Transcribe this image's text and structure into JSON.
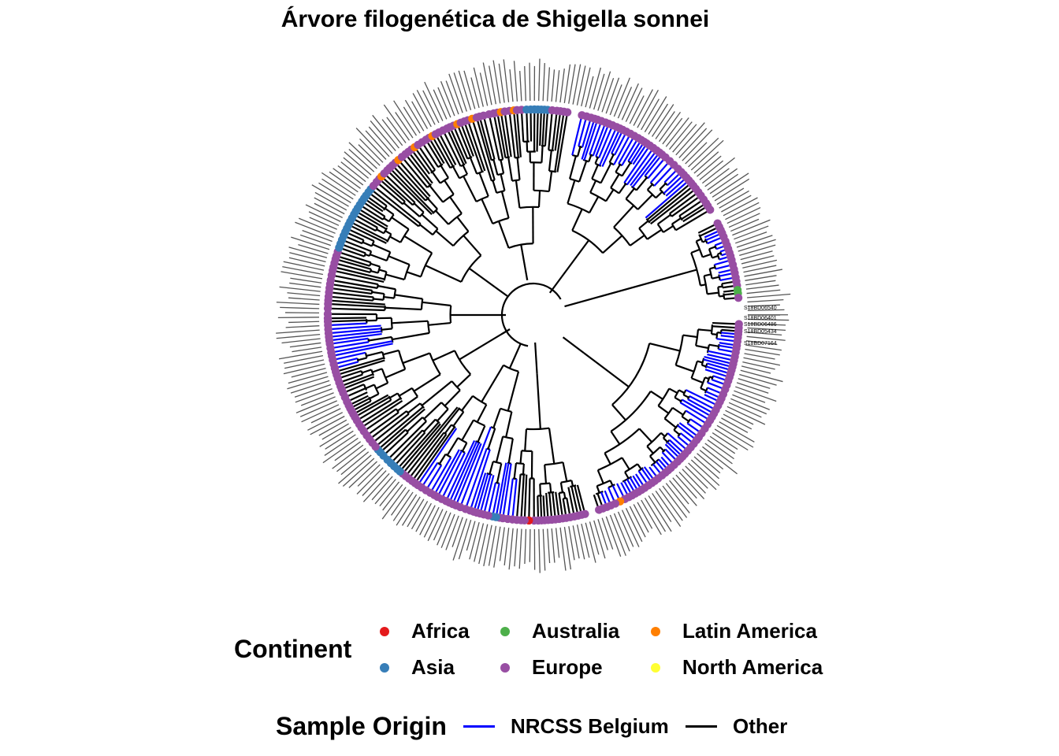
{
  "title": "Árvore filogenética de Shigella sonnei",
  "colors": {
    "africa": "#E41A1C",
    "asia": "#377EB8",
    "australia": "#4DAF4A",
    "europe": "#984EA3",
    "latin_america": "#FF7F00",
    "north_america": "#FFFF33",
    "nrcss": "#0000FF",
    "other": "#000000"
  },
  "legend_continent": {
    "title": "Continent",
    "items": [
      {
        "label": "Africa",
        "key": "africa"
      },
      {
        "label": "Asia",
        "key": "asia"
      },
      {
        "label": "Australia",
        "key": "australia"
      },
      {
        "label": "Europe",
        "key": "europe"
      },
      {
        "label": "Latin America",
        "key": "latin_america"
      },
      {
        "label": "North America",
        "key": "north_america"
      }
    ]
  },
  "legend_origin": {
    "title": "Sample Origin",
    "items": [
      {
        "label": "NRCSS Belgium",
        "key": "nrcss"
      },
      {
        "label": "Other",
        "key": "other"
      }
    ]
  },
  "tip_labels": [
    "S18BD06401",
    "S18BD06486",
    "S18BD06540",
    "S18BD05434",
    "S18BD07164"
  ]
}
